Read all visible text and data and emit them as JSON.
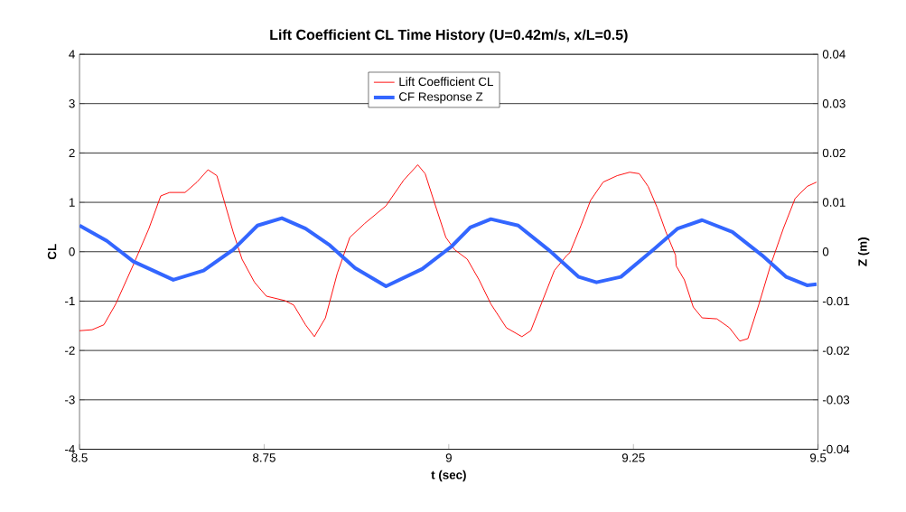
{
  "chart_data": {
    "type": "line",
    "title": "Lift Coefficient CL Time History (U=0.42m/s, x/L=0.5)",
    "xlabel": "t (sec)",
    "ylabel": "CL",
    "y2label": "Z (m)",
    "xlim": [
      8.5,
      9.5
    ],
    "xticks": [
      8.5,
      8.75,
      9,
      9.25,
      9.5
    ],
    "ylim": [
      -4,
      4
    ],
    "yticks": [
      -4,
      -3,
      -2,
      -1,
      0,
      1,
      2,
      3,
      4
    ],
    "y2lim": [
      -0.04,
      0.04
    ],
    "y2ticks": [
      -0.04,
      -0.03,
      -0.02,
      -0.01,
      0,
      0.01,
      0.02,
      0.03,
      0.04
    ],
    "grid": "y",
    "legend": "top",
    "marker": "none",
    "line_style": "solid",
    "series": [
      {
        "name": "Lift Coefficient CL",
        "color": "#ff0000",
        "x": [
          8.5,
          8.517,
          8.533,
          8.549,
          8.573,
          8.594,
          8.61,
          8.622,
          8.643,
          8.659,
          8.674,
          8.686,
          8.696,
          8.708,
          8.72,
          8.737,
          8.753,
          8.778,
          8.79,
          8.806,
          8.818,
          8.833,
          8.849,
          8.866,
          8.886,
          8.915,
          8.939,
          8.958,
          8.968,
          8.98,
          8.996,
          9.008,
          9.025,
          9.041,
          9.057,
          9.078,
          9.099,
          9.111,
          9.127,
          9.143,
          9.16,
          9.164,
          9.179,
          9.192,
          9.209,
          9.228,
          9.245,
          9.258,
          9.27,
          9.282,
          9.294,
          9.307,
          9.308,
          9.319,
          9.331,
          9.343,
          9.363,
          9.38,
          9.394,
          9.405,
          9.42,
          9.436,
          9.453,
          9.469,
          9.485,
          9.498
        ],
        "values": [
          -1.6,
          -1.58,
          -1.48,
          -1.06,
          -0.26,
          0.47,
          1.13,
          1.2,
          1.2,
          1.41,
          1.66,
          1.54,
          1.02,
          0.4,
          -0.15,
          -0.62,
          -0.9,
          -0.99,
          -1.08,
          -1.48,
          -1.72,
          -1.34,
          -0.44,
          0.29,
          0.57,
          0.93,
          1.45,
          1.76,
          1.58,
          1.02,
          0.29,
          0.04,
          -0.15,
          -0.57,
          -1.06,
          -1.54,
          -1.72,
          -1.6,
          -0.99,
          -0.38,
          -0.07,
          -0.02,
          0.53,
          1.04,
          1.41,
          1.54,
          1.61,
          1.58,
          1.32,
          0.9,
          0.4,
          -0.07,
          -0.29,
          -0.57,
          -1.12,
          -1.34,
          -1.36,
          -1.54,
          -1.81,
          -1.76,
          -1.06,
          -0.26,
          0.47,
          1.08,
          1.32,
          1.41
        ]
      },
      {
        "name": "CF Response Z",
        "color": "#3366ff",
        "axis": "y2",
        "x": [
          8.5,
          8.537,
          8.573,
          8.627,
          8.668,
          8.708,
          8.741,
          8.774,
          8.806,
          8.839,
          8.873,
          8.915,
          8.964,
          9.004,
          9.029,
          9.057,
          9.094,
          9.135,
          9.176,
          9.2,
          9.233,
          9.277,
          9.31,
          9.343,
          9.384,
          9.424,
          9.457,
          9.485,
          9.498
        ],
        "values": [
          0.0053,
          0.0022,
          -0.002,
          -0.0057,
          -0.0038,
          0.0004,
          0.0053,
          0.0068,
          0.0047,
          0.0013,
          -0.0033,
          -0.007,
          -0.0035,
          0.0011,
          0.0049,
          0.0066,
          0.0053,
          0.0004,
          -0.0051,
          -0.0062,
          -0.0051,
          0.0004,
          0.0047,
          0.0064,
          0.004,
          -0.0007,
          -0.0051,
          -0.0068,
          -0.0066
        ]
      }
    ]
  }
}
